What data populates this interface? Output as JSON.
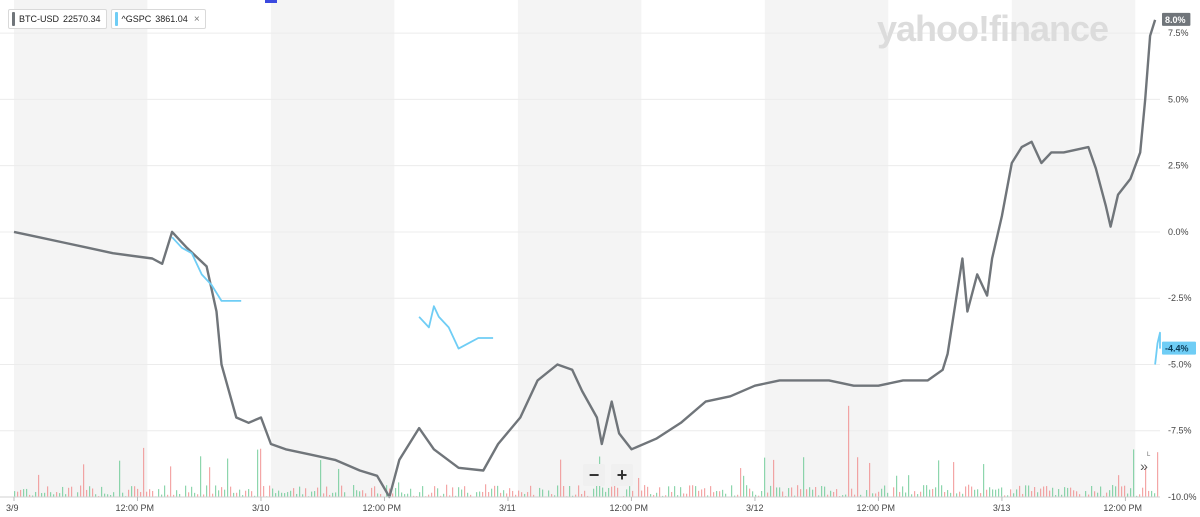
{
  "legend": [
    {
      "symbol": "BTC-USD",
      "price": "22570.34",
      "color": "#70757a"
    },
    {
      "symbol": "^GSPC",
      "price": "3861.04",
      "color": "#6fcdf5",
      "close": "×"
    }
  ],
  "watermark": "yahoo!finance",
  "zoom": {
    "minus": "−",
    "plus": "+"
  },
  "expand": {
    "icon": "»",
    "label": "L"
  },
  "chart_data": {
    "type": "line",
    "title": "",
    "xlabel": "",
    "ylabel": "",
    "ylim": [
      -10,
      8.6
    ],
    "x_domain": [
      0,
      4.64
    ],
    "y_ticks": [
      {
        "value": 7.5,
        "label": "7.5%"
      },
      {
        "value": 5.0,
        "label": "5.0%"
      },
      {
        "value": 2.5,
        "label": "2.5%"
      },
      {
        "value": 0.0,
        "label": "0.0%"
      },
      {
        "value": -2.5,
        "label": "-2.5%"
      },
      {
        "value": -5.0,
        "label": "-5.0%"
      },
      {
        "value": -7.5,
        "label": "-7.5%"
      },
      {
        "value": -10.0,
        "label": "-10.0%"
      }
    ],
    "x_ticks": [
      {
        "value": 0.0,
        "label": "3/9"
      },
      {
        "value": 0.5,
        "label": "12:00 PM"
      },
      {
        "value": 1.0,
        "label": "3/10"
      },
      {
        "value": 1.5,
        "label": "12:00 PM"
      },
      {
        "value": 2.0,
        "label": "3/11"
      },
      {
        "value": 2.5,
        "label": "12:00 PM"
      },
      {
        "value": 3.0,
        "label": "3/12"
      },
      {
        "value": 3.5,
        "label": "12:00 PM"
      },
      {
        "value": 4.0,
        "label": "3/13"
      },
      {
        "value": 4.5,
        "label": "12:00 PM"
      }
    ],
    "shaded_bands": [
      [
        0.0,
        0.54
      ],
      [
        1.04,
        1.54
      ],
      [
        2.04,
        2.54
      ],
      [
        3.04,
        3.54
      ],
      [
        4.04,
        4.54
      ]
    ],
    "series": [
      {
        "name": "BTC-USD",
        "color": "#70757a",
        "end_label": "8.0%",
        "points": [
          [
            0.0,
            0.0
          ],
          [
            0.1,
            -0.2
          ],
          [
            0.2,
            -0.4
          ],
          [
            0.3,
            -0.6
          ],
          [
            0.4,
            -0.8
          ],
          [
            0.56,
            -1.0
          ],
          [
            0.6,
            -1.2
          ],
          [
            0.64,
            0.0
          ],
          [
            0.7,
            -0.6
          ],
          [
            0.78,
            -1.3
          ],
          [
            0.82,
            -3.0
          ],
          [
            0.84,
            -5.0
          ],
          [
            0.9,
            -7.0
          ],
          [
            0.95,
            -7.2
          ],
          [
            1.0,
            -7.0
          ],
          [
            1.04,
            -8.0
          ],
          [
            1.1,
            -8.2
          ],
          [
            1.2,
            -8.4
          ],
          [
            1.3,
            -8.6
          ],
          [
            1.4,
            -9.0
          ],
          [
            1.47,
            -9.2
          ],
          [
            1.52,
            -10.0
          ],
          [
            1.56,
            -8.6
          ],
          [
            1.6,
            -8.0
          ],
          [
            1.64,
            -7.4
          ],
          [
            1.7,
            -8.2
          ],
          [
            1.8,
            -8.9
          ],
          [
            1.9,
            -9.0
          ],
          [
            1.96,
            -8.0
          ],
          [
            2.05,
            -7.0
          ],
          [
            2.12,
            -5.6
          ],
          [
            2.2,
            -5.0
          ],
          [
            2.26,
            -5.2
          ],
          [
            2.3,
            -6.0
          ],
          [
            2.36,
            -7.0
          ],
          [
            2.38,
            -8.0
          ],
          [
            2.42,
            -6.4
          ],
          [
            2.45,
            -7.6
          ],
          [
            2.5,
            -8.2
          ],
          [
            2.6,
            -7.8
          ],
          [
            2.7,
            -7.2
          ],
          [
            2.8,
            -6.4
          ],
          [
            2.9,
            -6.2
          ],
          [
            3.0,
            -5.8
          ],
          [
            3.1,
            -5.6
          ],
          [
            3.2,
            -5.6
          ],
          [
            3.3,
            -5.6
          ],
          [
            3.4,
            -5.8
          ],
          [
            3.5,
            -5.8
          ],
          [
            3.6,
            -5.6
          ],
          [
            3.7,
            -5.6
          ],
          [
            3.76,
            -5.2
          ],
          [
            3.78,
            -4.6
          ],
          [
            3.84,
            -1.0
          ],
          [
            3.86,
            -3.0
          ],
          [
            3.9,
            -1.6
          ],
          [
            3.94,
            -2.4
          ],
          [
            3.96,
            -1.0
          ],
          [
            4.0,
            0.6
          ],
          [
            4.04,
            2.6
          ],
          [
            4.08,
            3.2
          ],
          [
            4.12,
            3.4
          ],
          [
            4.16,
            2.6
          ],
          [
            4.2,
            3.0
          ],
          [
            4.25,
            3.0
          ],
          [
            4.35,
            3.2
          ],
          [
            4.38,
            2.4
          ],
          [
            4.42,
            1.0
          ],
          [
            4.44,
            0.2
          ],
          [
            4.47,
            1.4
          ],
          [
            4.52,
            2.0
          ],
          [
            4.56,
            3.0
          ],
          [
            4.58,
            5.0
          ],
          [
            4.6,
            7.4
          ],
          [
            4.62,
            8.0
          ]
        ]
      },
      {
        "name": "^GSPC",
        "color": "#6fcdf5",
        "end_label": "-4.4%",
        "segments": [
          [
            [
              0.64,
              -0.2
            ],
            [
              0.68,
              -0.6
            ],
            [
              0.72,
              -0.8
            ],
            [
              0.76,
              -1.6
            ],
            [
              0.8,
              -2.0
            ],
            [
              0.84,
              -2.6
            ],
            [
              0.92,
              -2.6
            ]
          ],
          [
            [
              1.64,
              -3.2
            ],
            [
              1.68,
              -3.6
            ],
            [
              1.7,
              -2.8
            ],
            [
              1.72,
              -3.2
            ],
            [
              1.76,
              -3.6
            ],
            [
              1.8,
              -4.4
            ],
            [
              1.84,
              -4.2
            ],
            [
              1.88,
              -4.0
            ],
            [
              1.94,
              -4.0
            ]
          ],
          [
            [
              4.62,
              -5.0
            ],
            [
              4.63,
              -4.2
            ],
            [
              4.64,
              -3.8
            ],
            [
              4.64,
              -4.4
            ]
          ]
        ]
      }
    ]
  }
}
